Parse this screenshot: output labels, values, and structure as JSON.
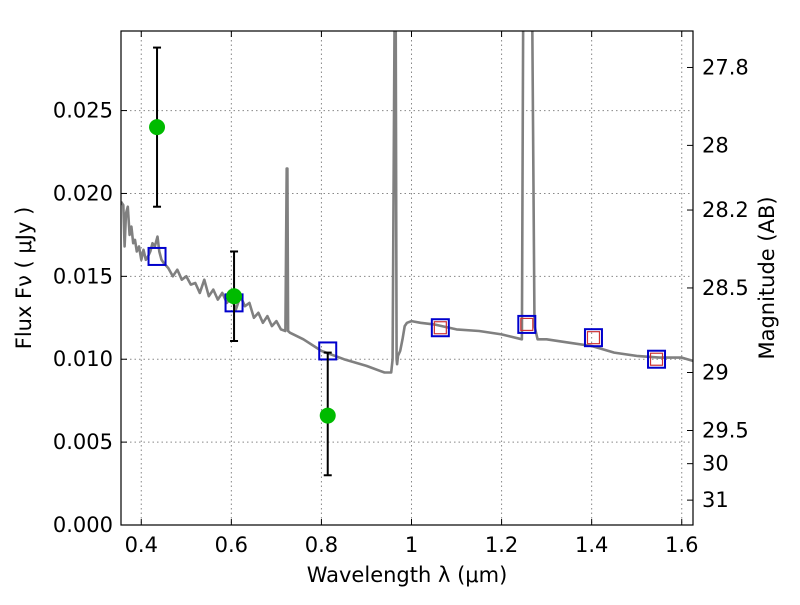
{
  "chart_data": {
    "type": "scatter",
    "title": "",
    "xlabel": "Wavelength  λ (μm)",
    "ylabel": "Flux  Fν  ( μJy )",
    "y2label": "Magnitude (AB)",
    "xlim": [
      0.355,
      1.625
    ],
    "ylim": [
      0.0,
      0.0298
    ],
    "grid": true,
    "legend": "none",
    "x_ticks": [
      0.4,
      0.6,
      0.8,
      1.0,
      1.2,
      1.4,
      1.6
    ],
    "x_tick_labels": [
      "0.4",
      "0.6",
      "0.8",
      "1",
      "1.2",
      "1.4",
      "1.6"
    ],
    "y_ticks": [
      0.0,
      0.005,
      0.01,
      0.015,
      0.02,
      0.025
    ],
    "y_tick_labels": [
      "0.000",
      "0.005",
      "0.010",
      "0.015",
      "0.020",
      "0.025"
    ],
    "y2_ticks": [
      {
        "flux": 0.0276,
        "label": "27.8"
      },
      {
        "flux": 0.0229,
        "label": "28"
      },
      {
        "flux": 0.019,
        "label": "28.2"
      },
      {
        "flux": 0.0143,
        "label": "28.5"
      },
      {
        "flux": 0.0092,
        "label": "29"
      },
      {
        "flux": 0.0057,
        "label": "29.5"
      },
      {
        "flux": 0.0037,
        "label": "30"
      },
      {
        "flux": 0.0015,
        "label": "31"
      }
    ],
    "colors": {
      "model": "#808080",
      "observed": "#00bb00",
      "errorbar": "#000000",
      "model_photometry": "#0000cc",
      "inner_photometry": "#cc3333",
      "grid": "#888888"
    },
    "series": [
      {
        "name": "",
        "kind": "model_spectrum",
        "x": [
          0.355,
          0.36,
          0.363,
          0.366,
          0.37,
          0.374,
          0.378,
          0.382,
          0.386,
          0.39,
          0.395,
          0.4,
          0.405,
          0.41,
          0.415,
          0.42,
          0.425,
          0.43,
          0.436,
          0.44,
          0.445,
          0.45,
          0.46,
          0.47,
          0.48,
          0.49,
          0.5,
          0.51,
          0.52,
          0.53,
          0.54,
          0.55,
          0.56,
          0.57,
          0.58,
          0.59,
          0.6,
          0.61,
          0.62,
          0.63,
          0.64,
          0.65,
          0.66,
          0.67,
          0.68,
          0.69,
          0.7,
          0.71,
          0.72,
          0.723,
          0.7245,
          0.726,
          0.73,
          0.76,
          0.8,
          0.85,
          0.9,
          0.94,
          0.955,
          0.958,
          0.9625,
          0.965,
          0.967,
          0.968,
          0.97,
          0.975,
          0.98,
          0.985,
          0.99,
          1.0,
          1.02,
          1.05,
          1.1,
          1.15,
          1.2,
          1.245,
          1.248,
          1.252,
          1.262,
          1.268,
          1.273,
          1.28,
          1.3,
          1.35,
          1.4,
          1.45,
          1.5,
          1.55,
          1.6,
          1.625
        ],
        "y": [
          0.0195,
          0.0193,
          0.0168,
          0.0188,
          0.0192,
          0.0175,
          0.018,
          0.017,
          0.0172,
          0.0165,
          0.0168,
          0.016,
          0.0166,
          0.016,
          0.0162,
          0.0165,
          0.017,
          0.0168,
          0.0174,
          0.0165,
          0.016,
          0.0158,
          0.0155,
          0.015,
          0.0154,
          0.0148,
          0.015,
          0.0145,
          0.0146,
          0.014,
          0.0148,
          0.0138,
          0.0142,
          0.0136,
          0.014,
          0.0134,
          0.0137,
          0.013,
          0.0138,
          0.0132,
          0.0134,
          0.0125,
          0.0128,
          0.0122,
          0.0126,
          0.012,
          0.0123,
          0.0118,
          0.0117,
          0.0215,
          0.0215,
          0.0117,
          0.0116,
          0.0112,
          0.0105,
          0.01,
          0.0096,
          0.0092,
          0.0092,
          0.01,
          0.031,
          0.031,
          0.01,
          0.0097,
          0.0102,
          0.0105,
          0.0112,
          0.012,
          0.0122,
          0.0123,
          0.0122,
          0.0121,
          0.0118,
          0.0117,
          0.0115,
          0.0112,
          0.031,
          0.031,
          0.031,
          0.031,
          0.012,
          0.0112,
          0.0112,
          0.011,
          0.0108,
          0.0104,
          0.0102,
          0.0101,
          0.0101,
          0.0099
        ]
      },
      {
        "name": "",
        "kind": "observed",
        "points": [
          {
            "x": 0.435,
            "y": 0.024,
            "err_low": 0.0192,
            "err_high": 0.0288
          },
          {
            "x": 0.606,
            "y": 0.0138,
            "err_low": 0.0111,
            "err_high": 0.0165
          },
          {
            "x": 0.814,
            "y": 0.0066,
            "err_low": 0.003,
            "err_high": 0.0104
          }
        ]
      },
      {
        "name": "",
        "kind": "model_photometry",
        "x": [
          0.435,
          0.606,
          0.814,
          1.064,
          1.256,
          1.404,
          1.544
        ],
        "y": [
          0.0162,
          0.0134,
          0.0105,
          0.0119,
          0.0121,
          0.0113,
          0.01
        ]
      },
      {
        "name": "",
        "kind": "inner_photometry",
        "x": [
          1.064,
          1.256,
          1.404,
          1.544
        ],
        "y": [
          0.0119,
          0.0121,
          0.0113,
          0.01
        ]
      }
    ]
  }
}
